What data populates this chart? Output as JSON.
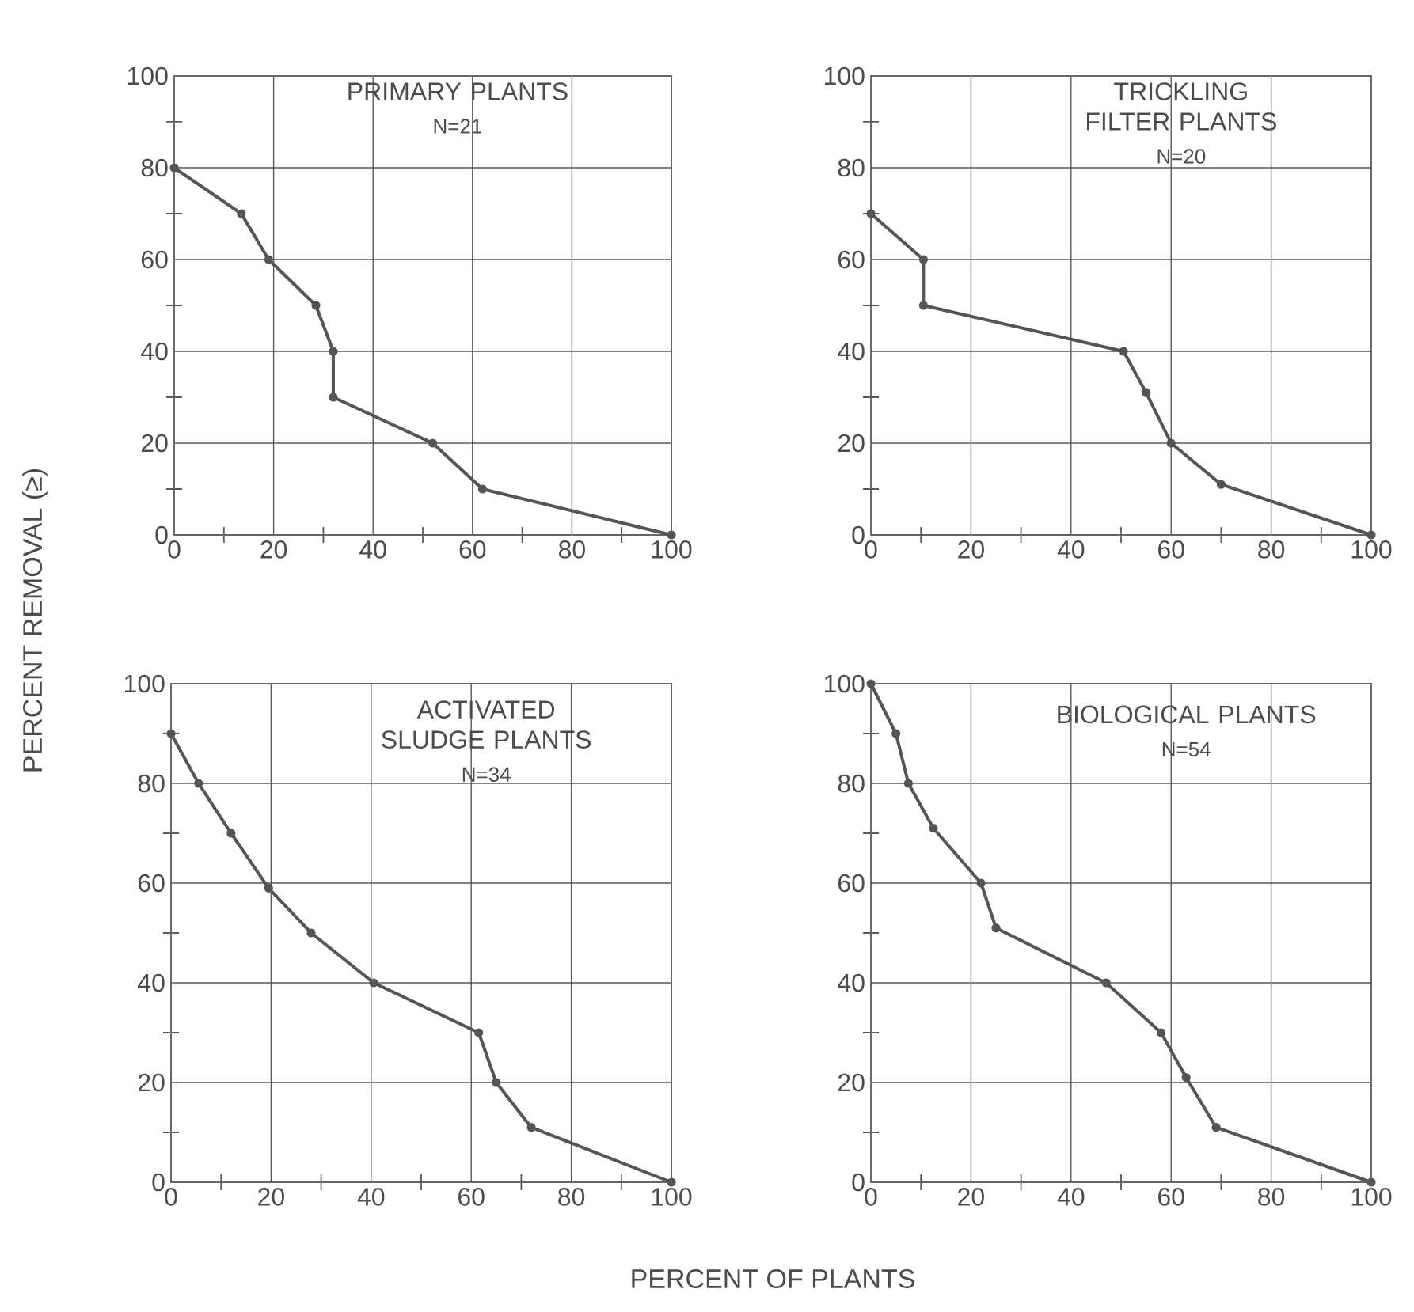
{
  "chart_data": [
    {
      "type": "line",
      "title": "PRIMARY PLANTS",
      "subtitle": "N=21",
      "ylabel": "PERCENT REMOVAL (≥)",
      "xlim": [
        0,
        100
      ],
      "ylim": [
        0,
        100
      ],
      "xticks": [
        0,
        {
          "value": 10,
          "label": null
        },
        20,
        {
          "value": 30,
          "label": null
        },
        40,
        {
          "value": 50,
          "label": null
        },
        60,
        {
          "value": 70,
          "label": null
        },
        80,
        {
          "value": 90,
          "label": null
        },
        100
      ],
      "yticks": [
        0,
        {
          "value": 10,
          "label": null
        },
        20,
        {
          "value": 30,
          "label": null
        },
        40,
        {
          "value": 50,
          "label": null
        },
        60,
        {
          "value": 70,
          "label": null
        },
        80,
        {
          "value": 90,
          "label": null
        },
        100
      ],
      "grid": true,
      "marker": "circle",
      "line_style": "solid",
      "series": [
        {
          "color": "#555555",
          "x": [
            0,
            13.5,
            19,
            28.5,
            32,
            32,
            52,
            62,
            100
          ],
          "values": [
            80,
            70,
            60,
            50,
            40,
            30,
            20,
            10,
            0
          ]
        }
      ]
    },
    {
      "type": "line",
      "title": "TRICKLING FILTER PLANTS",
      "subtitle": "N=20",
      "xlim": [
        0,
        100
      ],
      "ylim": [
        0,
        100
      ],
      "xticks": [
        0,
        {
          "value": 10,
          "label": null
        },
        20,
        {
          "value": 30,
          "label": null
        },
        40,
        {
          "value": 50,
          "label": null
        },
        60,
        {
          "value": 70,
          "label": null
        },
        80,
        {
          "value": 90,
          "label": null
        },
        100
      ],
      "yticks": [
        0,
        {
          "value": 10,
          "label": null
        },
        20,
        {
          "value": 30,
          "label": null
        },
        40,
        {
          "value": 50,
          "label": null
        },
        60,
        {
          "value": 70,
          "label": null
        },
        80,
        {
          "value": 90,
          "label": null
        },
        100
      ],
      "grid": true,
      "marker": "circle",
      "line_style": "solid",
      "series": [
        {
          "color": "#555555",
          "x": [
            0,
            10.5,
            10.5,
            50.5,
            55,
            60,
            70,
            100
          ],
          "values": [
            70,
            60,
            50,
            40,
            31,
            20,
            11,
            0
          ]
        }
      ]
    },
    {
      "type": "line",
      "title": "ACTIVATED SLUDGE PLANTS",
      "subtitle": "N=34",
      "xlabel": "PERCENT OF PLANTS",
      "xlim": [
        0,
        100
      ],
      "ylim": [
        0,
        100
      ],
      "xticks": [
        0,
        {
          "value": 10,
          "label": null
        },
        20,
        {
          "value": 30,
          "label": null
        },
        40,
        {
          "value": 50,
          "label": null
        },
        60,
        {
          "value": 70,
          "label": null
        },
        80,
        {
          "value": 90,
          "label": null
        },
        100
      ],
      "yticks": [
        0,
        {
          "value": 10,
          "label": null
        },
        20,
        {
          "value": 30,
          "label": null
        },
        40,
        {
          "value": 50,
          "label": null
        },
        60,
        {
          "value": 70,
          "label": null
        },
        80,
        {
          "value": 90,
          "label": null
        },
        100
      ],
      "grid": true,
      "marker": "circle",
      "line_style": "solid",
      "series": [
        {
          "color": "#555555",
          "x": [
            0,
            5.5,
            12,
            19.5,
            28,
            40.5,
            61.5,
            65,
            72,
            100
          ],
          "values": [
            90,
            80,
            70,
            59,
            50,
            40,
            30,
            20,
            11,
            0
          ]
        }
      ]
    },
    {
      "type": "line",
      "title": "BIOLOGICAL PLANTS",
      "subtitle": "N=54",
      "xlim": [
        0,
        100
      ],
      "ylim": [
        0,
        100
      ],
      "xticks": [
        0,
        {
          "value": 10,
          "label": null
        },
        20,
        {
          "value": 30,
          "label": null
        },
        40,
        {
          "value": 50,
          "label": null
        },
        60,
        {
          "value": 70,
          "label": null
        },
        80,
        {
          "value": 90,
          "label": null
        },
        100
      ],
      "yticks": [
        0,
        {
          "value": 10,
          "label": null
        },
        20,
        {
          "value": 30,
          "label": null
        },
        40,
        {
          "value": 50,
          "label": null
        },
        60,
        {
          "value": 70,
          "label": null
        },
        80,
        {
          "value": 90,
          "label": null
        },
        100
      ],
      "grid": true,
      "marker": "circle",
      "line_style": "solid",
      "series": [
        {
          "color": "#555555",
          "x": [
            0,
            5,
            7.5,
            12.5,
            22,
            25,
            47,
            58,
            63,
            69,
            100
          ],
          "values": [
            100,
            90,
            80,
            71,
            60,
            51,
            40,
            30,
            21,
            11,
            0
          ]
        }
      ]
    }
  ]
}
